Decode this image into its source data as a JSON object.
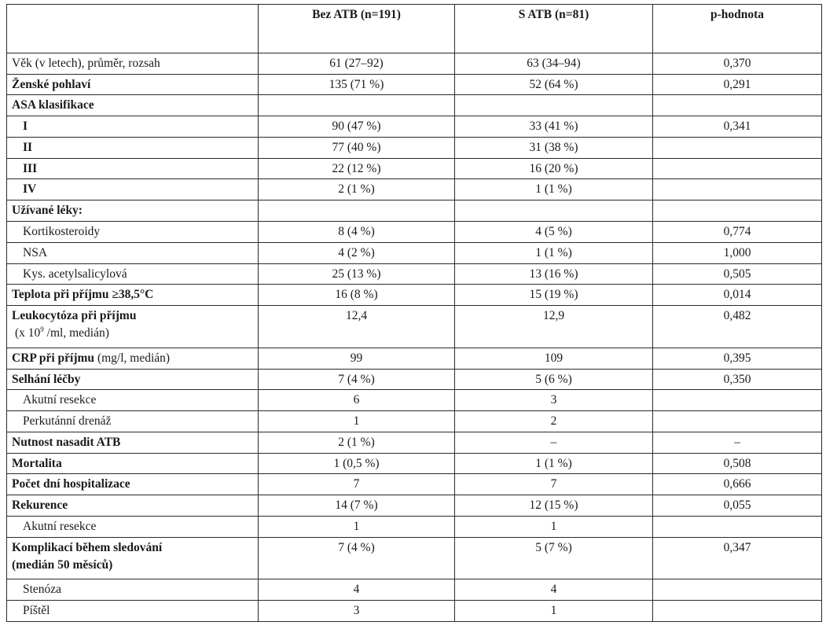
{
  "table": {
    "headers": [
      "",
      "Bez ATB (n=191)",
      "S ATB (n=81)",
      "p-hodnota"
    ],
    "rows": [
      {
        "label": "Věk (v letech), průměr, rozsah",
        "style": "plain",
        "c2": "61 (27–92)",
        "c3": "63 (34–94)",
        "c4": "0,370"
      },
      {
        "label": "Ženské pohlaví",
        "style": "bold",
        "c2": "135 (71 %)",
        "c3": "52 (64 %)",
        "c4": "0,291"
      },
      {
        "label": "ASA klasifikace",
        "style": "bold",
        "c2": "",
        "c3": "",
        "c4": ""
      },
      {
        "label": "I",
        "style": "roman",
        "c2": "90 (47 %)",
        "c3": "33 (41 %)",
        "c4": "0,341"
      },
      {
        "label": "II",
        "style": "roman",
        "c2": "77 (40 %)",
        "c3": "31 (38 %)",
        "c4": ""
      },
      {
        "label": "III",
        "style": "roman",
        "c2": "22 (12 %)",
        "c3": "16 (20 %)",
        "c4": ""
      },
      {
        "label": "IV",
        "style": "roman",
        "c2": "2 (1 %)",
        "c3": "1 (1 %)",
        "c4": ""
      },
      {
        "label": "Užívané léky:",
        "style": "bold",
        "c2": "",
        "c3": "",
        "c4": ""
      },
      {
        "label": "Kortikosteroidy",
        "style": "sub",
        "c2": "8 (4 %)",
        "c3": "4 (5 %)",
        "c4": "0,774"
      },
      {
        "label": "NSA",
        "style": "sub",
        "c2": "4 (2 %)",
        "c3": "1 (1 %)",
        "c4": "1,000"
      },
      {
        "label": "Kys. acetylsalicylová",
        "style": "sub",
        "c2": "25 (13 %)",
        "c3": "13 (16 %)",
        "c4": "0,505"
      },
      {
        "label": "Teplota při příjmu ≥38,5°C",
        "style": "bold",
        "c2": "16 (8 %)",
        "c3": "15 (19 %)",
        "c4": "0,014"
      },
      {
        "label": "Leukocytóza při příjmu",
        "label2a": "(x 10",
        "label2sup": "9",
        "label2b": " /ml, medián)",
        "style": "bold2",
        "c2": "12,4",
        "c3": "12,9",
        "c4": "0,482"
      },
      {
        "label": "CRP při příjmu",
        "label_rest": " (mg/l, medián)",
        "style": "mixed",
        "c2": "99",
        "c3": "109",
        "c4": "0,395"
      },
      {
        "label": "Selhání léčby",
        "style": "bold",
        "c2": "7 (4 %)",
        "c3": "5 (6 %)",
        "c4": "0,350"
      },
      {
        "label": "Akutní resekce",
        "style": "sub",
        "c2": "6",
        "c3": "3",
        "c4": ""
      },
      {
        "label": "Perkutánní drenáž",
        "style": "sub",
        "c2": "1",
        "c3": "2",
        "c4": ""
      },
      {
        "label": "Nutnost nasadit ATB",
        "style": "bold",
        "c2": "2 (1 %)",
        "c3": "–",
        "c4": "–"
      },
      {
        "label": "Mortalita",
        "style": "bold",
        "c2": "1 (0,5 %)",
        "c3": "1 (1 %)",
        "c4": "0,508"
      },
      {
        "label": "Počet dní hospitalizace",
        "style": "bold",
        "c2": "7",
        "c3": "7",
        "c4": "0,666"
      },
      {
        "label": "Rekurence",
        "style": "bold",
        "c2": "14 (7 %)",
        "c3": "12 (15 %)",
        "c4": "0,055"
      },
      {
        "label": "Akutní resekce",
        "style": "sub",
        "c2": "1",
        "c3": "1",
        "c4": ""
      },
      {
        "label": "Komplikací během sledování",
        "label2": "(medián 50 měsíců)",
        "style": "bold2b",
        "c2": "7 (4 %)",
        "c3": "5 (7 %)",
        "c4": "0,347"
      },
      {
        "label": "Stenóza",
        "style": "sub",
        "c2": "4",
        "c3": "4",
        "c4": ""
      },
      {
        "label": "Píštěl",
        "style": "sub",
        "c2": "3",
        "c3": "1",
        "c4": ""
      }
    ]
  }
}
